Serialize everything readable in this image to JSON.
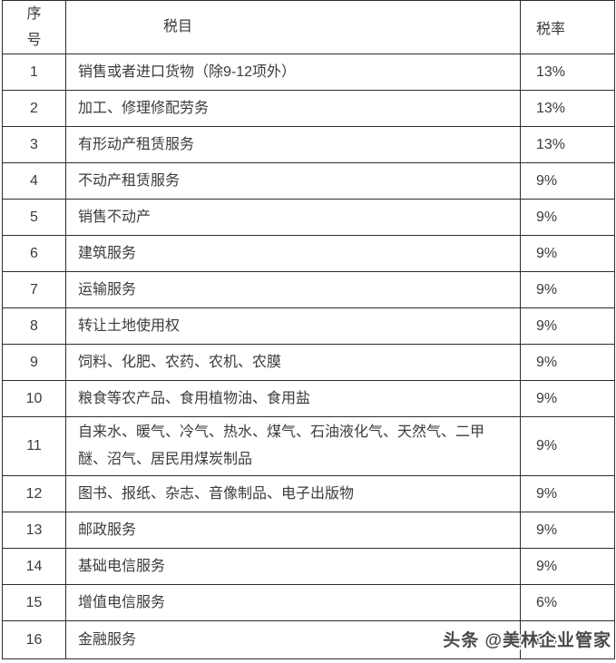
{
  "table": {
    "headers": {
      "no": "序号",
      "item": "税目",
      "rate": "税率"
    },
    "rows": [
      {
        "no": "1",
        "item": "销售或者进口货物（除9-12项外）",
        "rate": "13%"
      },
      {
        "no": "2",
        "item": "加工、修理修配劳务",
        "rate": "13%"
      },
      {
        "no": "3",
        "item": "有形动产租赁服务",
        "rate": "13%"
      },
      {
        "no": "4",
        "item": "不动产租赁服务",
        "rate": "9%"
      },
      {
        "no": "5",
        "item": "销售不动产",
        "rate": "9%"
      },
      {
        "no": "6",
        "item": "建筑服务",
        "rate": "9%"
      },
      {
        "no": "7",
        "item": "运输服务",
        "rate": "9%"
      },
      {
        "no": "8",
        "item": "转让土地使用权",
        "rate": "9%"
      },
      {
        "no": "9",
        "item": "饲料、化肥、农药、农机、农膜",
        "rate": "9%"
      },
      {
        "no": "10",
        "item": "粮食等农产品、食用植物油、食用盐",
        "rate": "9%"
      },
      {
        "no": "11",
        "item": "自来水、暖气、冷气、热水、煤气、石油液化气、天然气、二甲醚、沼气、居民用煤炭制品",
        "rate": "9%"
      },
      {
        "no": "12",
        "item": "图书、报纸、杂志、音像制品、电子出版物",
        "rate": "9%"
      },
      {
        "no": "13",
        "item": "邮政服务",
        "rate": "9%"
      },
      {
        "no": "14",
        "item": "基础电信服务",
        "rate": "9%"
      },
      {
        "no": "15",
        "item": "增值电信服务",
        "rate": "6%"
      },
      {
        "no": "16",
        "item": "金融服务",
        "rate": "6%"
      }
    ]
  },
  "watermark": {
    "text": "头条 @美林企业管家"
  },
  "colors": {
    "bg": "#ffffff",
    "text": "#3b3b3b",
    "border": "#2d2d2d",
    "watermark": "#4a4a4a"
  }
}
